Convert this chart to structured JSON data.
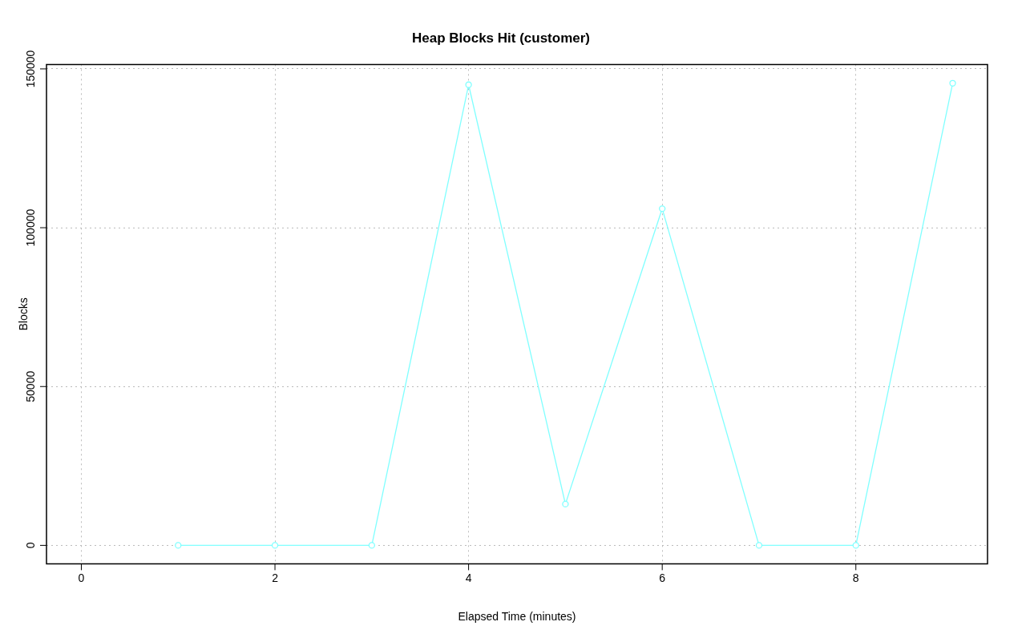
{
  "chart_data": {
    "type": "line",
    "title": "Heap Blocks Hit (customer)",
    "xlabel": "Elapsed Time (minutes)",
    "ylabel": "Blocks",
    "x": [
      1,
      2,
      3,
      4,
      5,
      6,
      7,
      8,
      9
    ],
    "series": [
      {
        "color": "#80ffff",
        "values": [
          0,
          0,
          0,
          145000,
          13000,
          106000,
          0,
          0,
          145500
        ]
      }
    ],
    "xlim": [
      -0.36,
      9.36
    ],
    "xticks": [
      0,
      2,
      4,
      6,
      8
    ],
    "ylim": [
      -5800,
      151400
    ],
    "yticks": [
      0,
      50000,
      100000,
      150000
    ],
    "grid": true,
    "legend": false,
    "marker": "circle",
    "line_style": "solid"
  }
}
